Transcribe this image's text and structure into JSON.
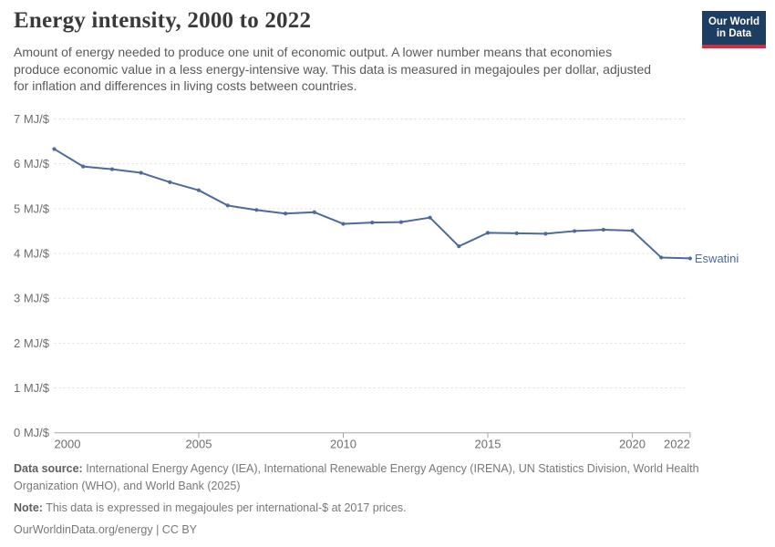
{
  "header": {
    "logo": {
      "line1": "Our World",
      "line2": "in Data"
    }
  },
  "subtitle": "Amount of energy needed to produce one unit of economic output. A lower number means that economies produce economic value in a less energy-intensive way. This data is measured in megajoules per dollar, adjusted for inflation and differences in living costs between countries.",
  "chart_data": {
    "type": "line",
    "title": "Energy intensity, 2000 to 2022",
    "unit": "MJ/$",
    "xlabel": "",
    "ylabel": "",
    "xlim": [
      2000,
      2022
    ],
    "ylim": [
      0,
      7
    ],
    "x": [
      2000,
      2001,
      2002,
      2003,
      2004,
      2005,
      2006,
      2007,
      2008,
      2009,
      2010,
      2011,
      2012,
      2013,
      2014,
      2015,
      2016,
      2017,
      2018,
      2019,
      2020,
      2021,
      2022
    ],
    "series": [
      {
        "name": "Eswatini",
        "color": "#4c6a9c",
        "values": [
          6.33,
          5.94,
          5.88,
          5.8,
          5.59,
          5.41,
          5.07,
          4.97,
          4.89,
          4.92,
          4.66,
          4.69,
          4.7,
          4.8,
          4.16,
          4.46,
          4.45,
          4.44,
          4.5,
          4.53,
          4.51,
          3.91,
          3.89
        ]
      }
    ],
    "x_ticks": [
      2000,
      2005,
      2010,
      2015,
      2020,
      2022
    ],
    "y_ticks": [
      0,
      1,
      2,
      3,
      4,
      5,
      6,
      7
    ],
    "grid": "horizontal-dashed",
    "legend_position": "end-of-line-label",
    "colors": {
      "grid": "#dcdcdc",
      "axis": "#a5a5a5",
      "tick_text": "#6e6e6e"
    }
  },
  "footer": {
    "source_label": "Data source:",
    "source_text": "International Energy Agency (IEA), International Renewable Energy Agency (IRENA), UN Statistics Division, World Health Organization (WHO), and World Bank (2025)",
    "note_label": "Note:",
    "note_text": "This data is expressed in megajoules per international-$ at 2017 prices.",
    "link_text": "OurWorldinData.org/energy | CC BY"
  }
}
